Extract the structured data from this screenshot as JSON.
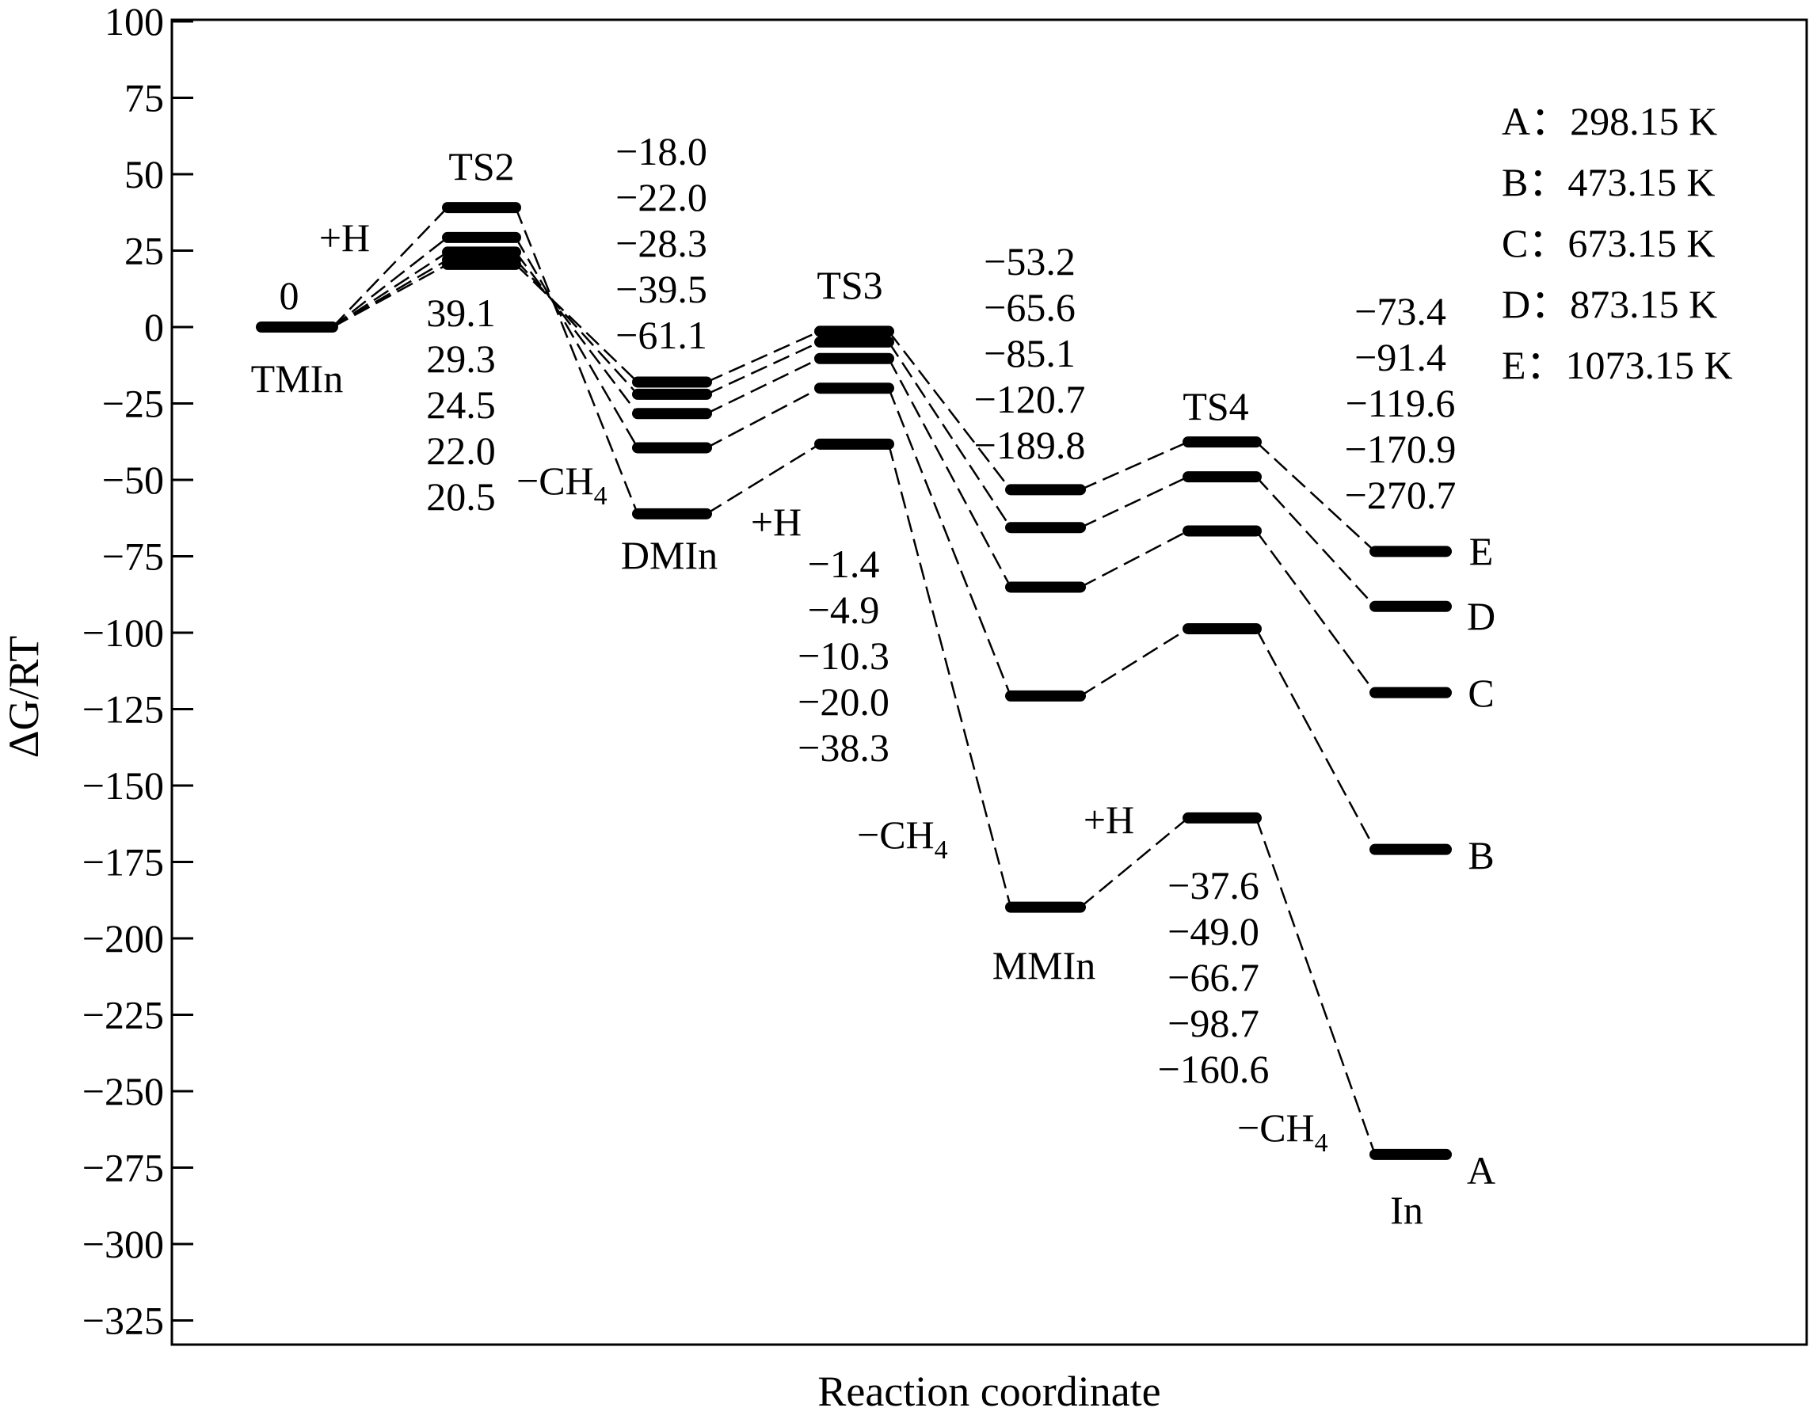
{
  "chart_data": {
    "type": "energy-profile",
    "xlabel": "Reaction coordinate",
    "ylabel": "ΔG/RT",
    "ylim": [
      -330,
      100
    ],
    "yticks": [
      100,
      75,
      50,
      25,
      0,
      -25,
      -50,
      -75,
      -100,
      -125,
      -150,
      -175,
      -200,
      -225,
      -250,
      -275,
      -300,
      -325
    ],
    "grid": false,
    "legend_position": "top-right",
    "stages": [
      "TMIn",
      "TS2",
      "DMIn",
      "TS3",
      "MMIn",
      "TS4",
      "In"
    ],
    "stage_labels": {
      "TMIn": "TMIn",
      "TS2": "TS2",
      "DMIn": "DMIn",
      "TS3": "TS3",
      "MMIn": "MMIn",
      "TS4": "TS4",
      "In": "In"
    },
    "series": [
      {
        "name": "A",
        "legend": "A：298.15 K",
        "values": [
          0,
          39.1,
          -61.1,
          -38.3,
          -189.8,
          -160.6,
          -270.7
        ]
      },
      {
        "name": "B",
        "legend": "B：473.15 K",
        "values": [
          0,
          29.3,
          -39.5,
          -20.0,
          -120.7,
          -98.7,
          -170.9
        ]
      },
      {
        "name": "C",
        "legend": "C：673.15 K",
        "values": [
          0,
          24.5,
          -28.3,
          -10.3,
          -85.1,
          -66.7,
          -119.6
        ]
      },
      {
        "name": "D",
        "legend": "D：873.15 K",
        "values": [
          0,
          22.0,
          -22.0,
          -4.9,
          -65.6,
          -49.0,
          -91.4
        ]
      },
      {
        "name": "E",
        "legend": "E：1073.15 K",
        "values": [
          0,
          20.5,
          -18.0,
          -1.4,
          -53.2,
          -37.6,
          -73.4
        ]
      }
    ],
    "value_labels": {
      "TMIn": [
        "0"
      ],
      "TS2": [
        "39.1",
        "29.3",
        "24.5",
        "22.0",
        "20.5"
      ],
      "DMIn": [
        "−18.0",
        "−22.0",
        "−28.3",
        "−39.5",
        "−61.1"
      ],
      "TS3": [
        "−1.4",
        "−4.9",
        "−10.3",
        "−20.0",
        "−38.3"
      ],
      "MMIn": [
        "−53.2",
        "−65.6",
        "−85.1",
        "−120.7",
        "−189.8"
      ],
      "TS4": [
        "−37.6",
        "−49.0",
        "−66.7",
        "−98.7",
        "−160.6"
      ],
      "In": [
        "−73.4",
        "−91.4",
        "−119.6",
        "−170.9",
        "−270.7"
      ]
    },
    "annotations": {
      "plus_h": "+H",
      "minus_ch4_base": "−CH",
      "minus_ch4_sub": "4"
    }
  }
}
